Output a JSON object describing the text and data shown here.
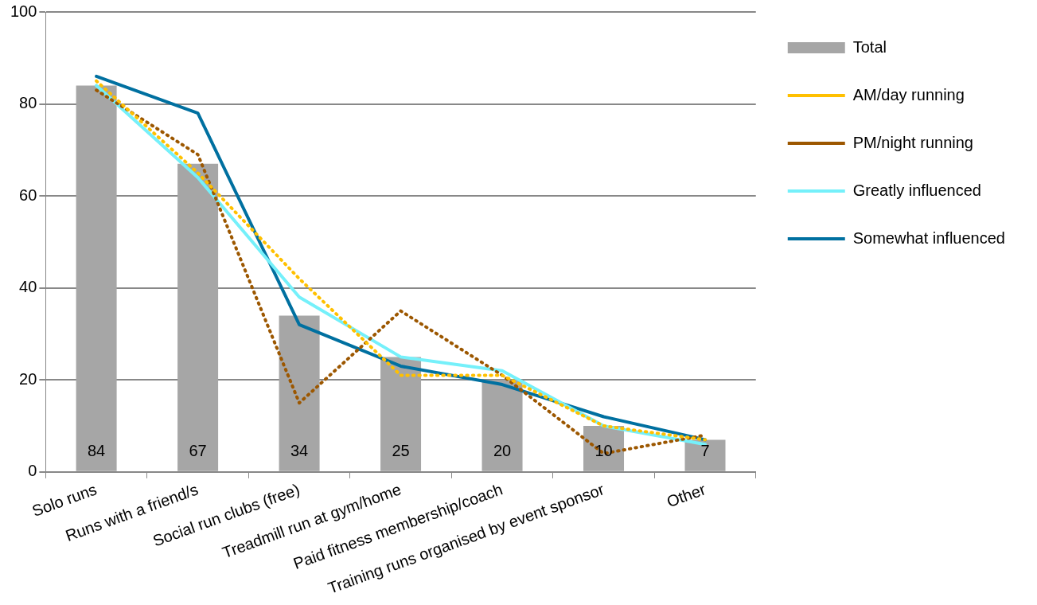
{
  "chart_data": {
    "type": "bar",
    "categories": [
      "Solo runs",
      "Runs with a friend/s",
      "Social run clubs (free)",
      "Treadmill run at gym/home",
      "Paid fitness membership/coach",
      "Training runs organised by event sponsor",
      "Other"
    ],
    "series": [
      {
        "name": "Total",
        "color": "#a6a6a6",
        "values": [
          84,
          67,
          34,
          25,
          20,
          10,
          7
        ],
        "value_labels": [
          "84",
          "67",
          "34",
          "25",
          "20",
          "10",
          "7"
        ]
      },
      {
        "name": "AM/day running",
        "type": "line",
        "line_style": "dotted",
        "color": "#ffc000",
        "values": [
          85,
          65,
          42,
          21,
          21,
          10,
          7
        ]
      },
      {
        "name": "PM/night running",
        "type": "line",
        "line_style": "dotted",
        "color": "#9c5700",
        "values": [
          83,
          69,
          15,
          35,
          21,
          4,
          8
        ]
      },
      {
        "name": "Greatly influenced",
        "type": "line",
        "line_style": "solid",
        "color": "#75f0fa",
        "values": [
          84,
          64,
          38,
          25,
          22,
          10,
          6
        ]
      },
      {
        "name": "Somewhat influenced",
        "type": "line",
        "line_style": "solid",
        "color": "#0070a0",
        "values": [
          86,
          78,
          32,
          23,
          19,
          12,
          7
        ]
      }
    ],
    "ylim": [
      0,
      100
    ],
    "yticks": [
      0,
      20,
      40,
      60,
      80,
      100
    ],
    "grid": "y",
    "legend": "top right",
    "marker": "none"
  }
}
